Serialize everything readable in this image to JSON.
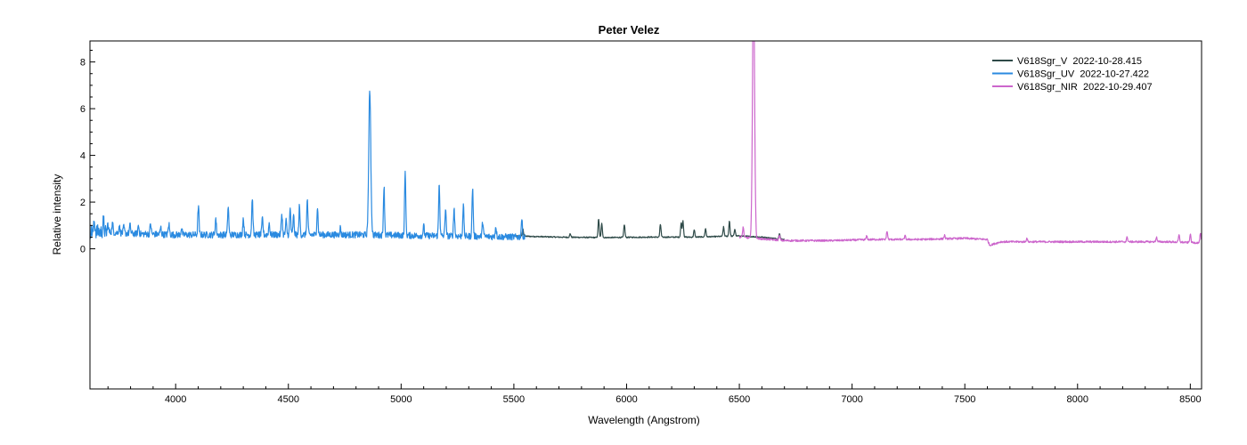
{
  "chart_data": {
    "type": "line",
    "title": "Peter Velez",
    "xlabel": "Wavelength (Angstrom)",
    "ylabel": "Relative intensity",
    "xlim": [
      3620,
      8550
    ],
    "ylim": [
      -6,
      8.9
    ],
    "x_ticks": [
      4000,
      4500,
      5000,
      5500,
      6000,
      6500,
      7000,
      7500,
      8000,
      8500
    ],
    "y_ticks": [
      0,
      2,
      4,
      6,
      8
    ],
    "x_minor_step": 100,
    "y_minor_step": 0.5,
    "grid": false,
    "legend_position": "top-right",
    "series": [
      {
        "name": "V618Sgr_V  2022-10-28.415",
        "color": "#2e4a48",
        "baseline": [
          [
            5500,
            0.55
          ],
          [
            5700,
            0.5
          ],
          [
            5900,
            0.48
          ],
          [
            6100,
            0.5
          ],
          [
            6300,
            0.5
          ],
          [
            6500,
            0.55
          ],
          [
            6600,
            0.5
          ],
          [
            6650,
            0.45
          ],
          [
            6700,
            0.4
          ]
        ],
        "lines": [
          [
            5540,
            0.3
          ],
          [
            5750,
            0.15
          ],
          [
            5876,
            0.8
          ],
          [
            5890,
            0.6
          ],
          [
            5990,
            0.55
          ],
          [
            6150,
            0.55
          ],
          [
            6242,
            0.6
          ],
          [
            6250,
            0.7
          ],
          [
            6300,
            0.3
          ],
          [
            6350,
            0.35
          ],
          [
            6430,
            0.4
          ],
          [
            6456,
            0.65
          ],
          [
            6480,
            0.3
          ],
          [
            6678,
            0.25
          ]
        ],
        "x_range": [
          5500,
          6700
        ],
        "noise": 0.025
      },
      {
        "name": "V618Sgr_UV  2022-10-27.422",
        "color": "#2a8ae0",
        "baseline": [
          [
            3620,
            0.75
          ],
          [
            3800,
            0.65
          ],
          [
            4000,
            0.6
          ],
          [
            4400,
            0.6
          ],
          [
            4800,
            0.6
          ],
          [
            5200,
            0.55
          ],
          [
            5550,
            0.5
          ]
        ],
        "lines": [
          [
            3640,
            0.4
          ],
          [
            3680,
            0.5
          ],
          [
            3700,
            0.3
          ],
          [
            3720,
            0.4
          ],
          [
            3750,
            0.3
          ],
          [
            3770,
            0.25
          ],
          [
            3798,
            0.35
          ],
          [
            3835,
            0.35
          ],
          [
            3889,
            0.45
          ],
          [
            3934,
            0.3
          ],
          [
            3970,
            0.45
          ],
          [
            4026,
            0.3
          ],
          [
            4101,
            1.25
          ],
          [
            4178,
            0.7
          ],
          [
            4233,
            1.2
          ],
          [
            4300,
            0.7
          ],
          [
            4340,
            1.6
          ],
          [
            4385,
            0.7
          ],
          [
            4415,
            0.5
          ],
          [
            4471,
            0.9
          ],
          [
            4490,
            0.6
          ],
          [
            4508,
            1.1
          ],
          [
            4523,
            0.8
          ],
          [
            4549,
            1.2
          ],
          [
            4584,
            1.5
          ],
          [
            4629,
            1.2
          ],
          [
            4730,
            0.3
          ],
          [
            4861,
            6.2
          ],
          [
            4924,
            2.1
          ],
          [
            5018,
            2.7
          ],
          [
            5100,
            0.4
          ],
          [
            5169,
            2.3
          ],
          [
            5197,
            1.2
          ],
          [
            5235,
            1.2
          ],
          [
            5276,
            1.3
          ],
          [
            5317,
            2.1
          ],
          [
            5362,
            0.65
          ],
          [
            5420,
            0.45
          ],
          [
            5535,
            0.75
          ]
        ],
        "x_range": [
          3620,
          5550
        ],
        "noise": 0.14
      },
      {
        "name": "V618Sgr_NIR  2022-10-29.407",
        "color": "#cc66cc",
        "baseline": [
          [
            6500,
            0.5
          ],
          [
            6700,
            0.35
          ],
          [
            6900,
            0.35
          ],
          [
            7100,
            0.4
          ],
          [
            7300,
            0.4
          ],
          [
            7500,
            0.45
          ],
          [
            7600,
            0.4
          ],
          [
            7610,
            0.15
          ],
          [
            7660,
            0.3
          ],
          [
            7900,
            0.3
          ],
          [
            8200,
            0.3
          ],
          [
            8400,
            0.3
          ],
          [
            8550,
            0.25
          ]
        ],
        "lines": [
          [
            6517,
            0.45
          ],
          [
            6563,
            11.5
          ],
          [
            6678,
            0.2
          ],
          [
            7065,
            0.15
          ],
          [
            7155,
            0.35
          ],
          [
            7235,
            0.15
          ],
          [
            7410,
            0.15
          ],
          [
            7775,
            0.15
          ],
          [
            8220,
            0.2
          ],
          [
            8350,
            0.2
          ],
          [
            8450,
            0.3
          ],
          [
            8500,
            0.35
          ],
          [
            8545,
            0.4
          ]
        ],
        "x_range": [
          6500,
          8550
        ],
        "noise": 0.04
      }
    ]
  }
}
